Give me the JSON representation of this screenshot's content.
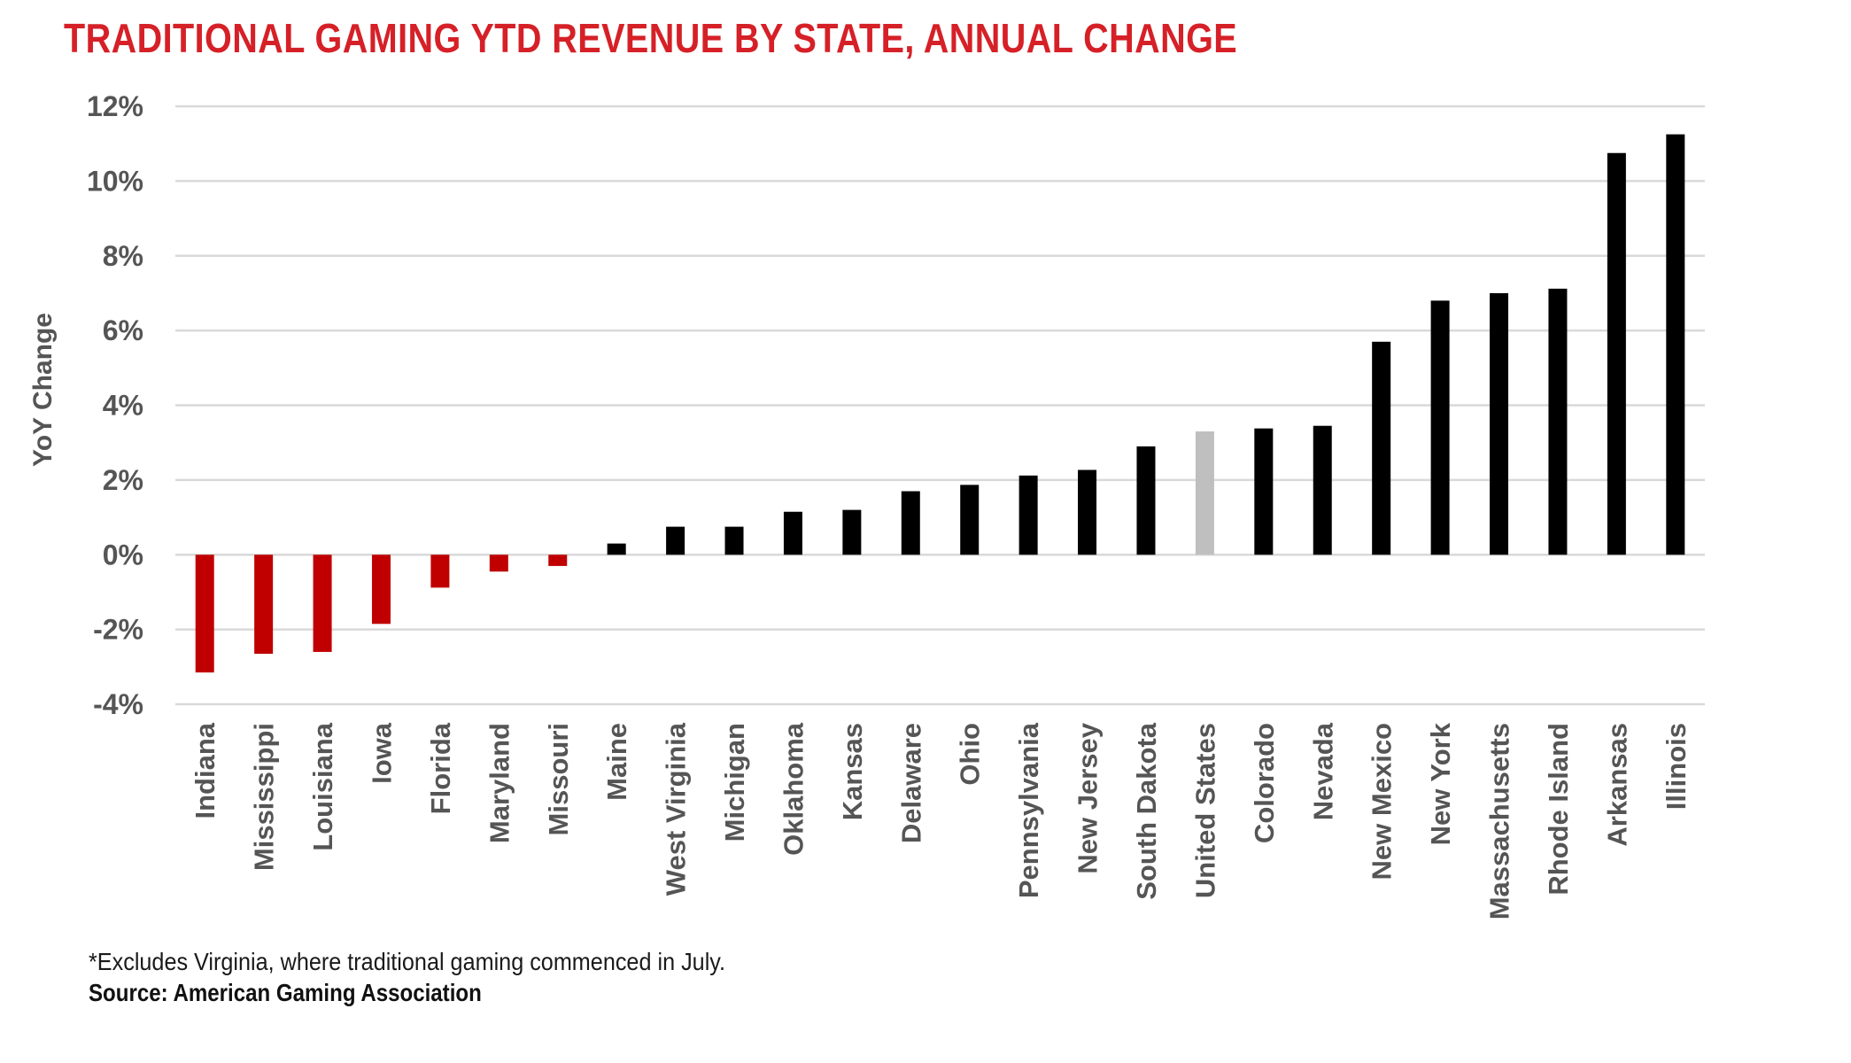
{
  "colors": {
    "title": "#d62027",
    "negative": "#c00000",
    "positive": "#000000",
    "highlight": "#bfbfbf",
    "gridline": "#d9d9d9"
  },
  "footnote": "*Excludes Virginia, where traditional gaming commenced in July.",
  "source": "Source: American Gaming Association",
  "chart_data": {
    "type": "bar",
    "title": "TRADITIONAL GAMING YTD REVENUE BY STATE, ANNUAL CHANGE",
    "xlabel": "",
    "ylabel": "YoY Change",
    "ylim": [
      -4,
      12
    ],
    "yticks": [
      -4,
      -2,
      0,
      2,
      4,
      6,
      8,
      10,
      12
    ],
    "ytick_labels": [
      "-4%",
      "-2%",
      "0%",
      "2%",
      "4%",
      "6%",
      "8%",
      "10%",
      "12%"
    ],
    "grid": true,
    "legend": "none",
    "categories": [
      "Indiana",
      "Mississippi",
      "Louisiana",
      "Iowa",
      "Florida",
      "Maryland",
      "Missouri",
      "Maine",
      "West Virginia",
      "Michigan",
      "Oklahoma",
      "Kansas",
      "Delaware",
      "Ohio",
      "Pennsylvania",
      "New Jersey",
      "South Dakota",
      "United States",
      "Colorado",
      "Nevada",
      "New Mexico",
      "New York",
      "Massachusetts",
      "Rhode Island",
      "Arkansas",
      "Illinois"
    ],
    "values": [
      -3.15,
      -2.65,
      -2.6,
      -1.85,
      -0.88,
      -0.45,
      -0.3,
      0.3,
      0.75,
      0.75,
      1.15,
      1.2,
      1.7,
      1.87,
      2.12,
      2.27,
      2.9,
      3.3,
      3.38,
      3.45,
      5.7,
      6.8,
      7.0,
      7.12,
      10.75,
      11.25
    ],
    "highlight_category": "United States"
  }
}
